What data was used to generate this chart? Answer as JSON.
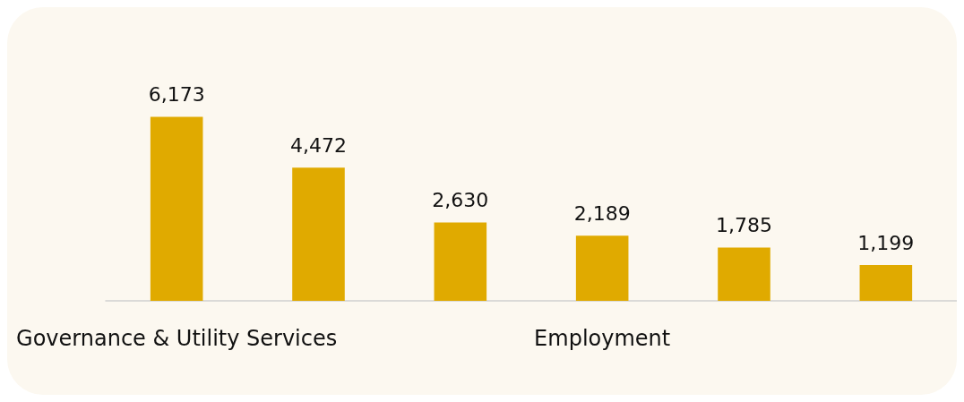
{
  "chart_data": {
    "type": "bar",
    "categories": [
      "Governance & Utility Services",
      null,
      null,
      "Employment",
      null,
      null
    ],
    "values": [
      6173,
      4472,
      2630,
      2189,
      1785,
      1199
    ],
    "value_labels": [
      "6,173",
      "4,472",
      "2,630",
      "2,189",
      "1,785",
      "1,199"
    ],
    "color": "#e0aa00",
    "grid": false
  }
}
